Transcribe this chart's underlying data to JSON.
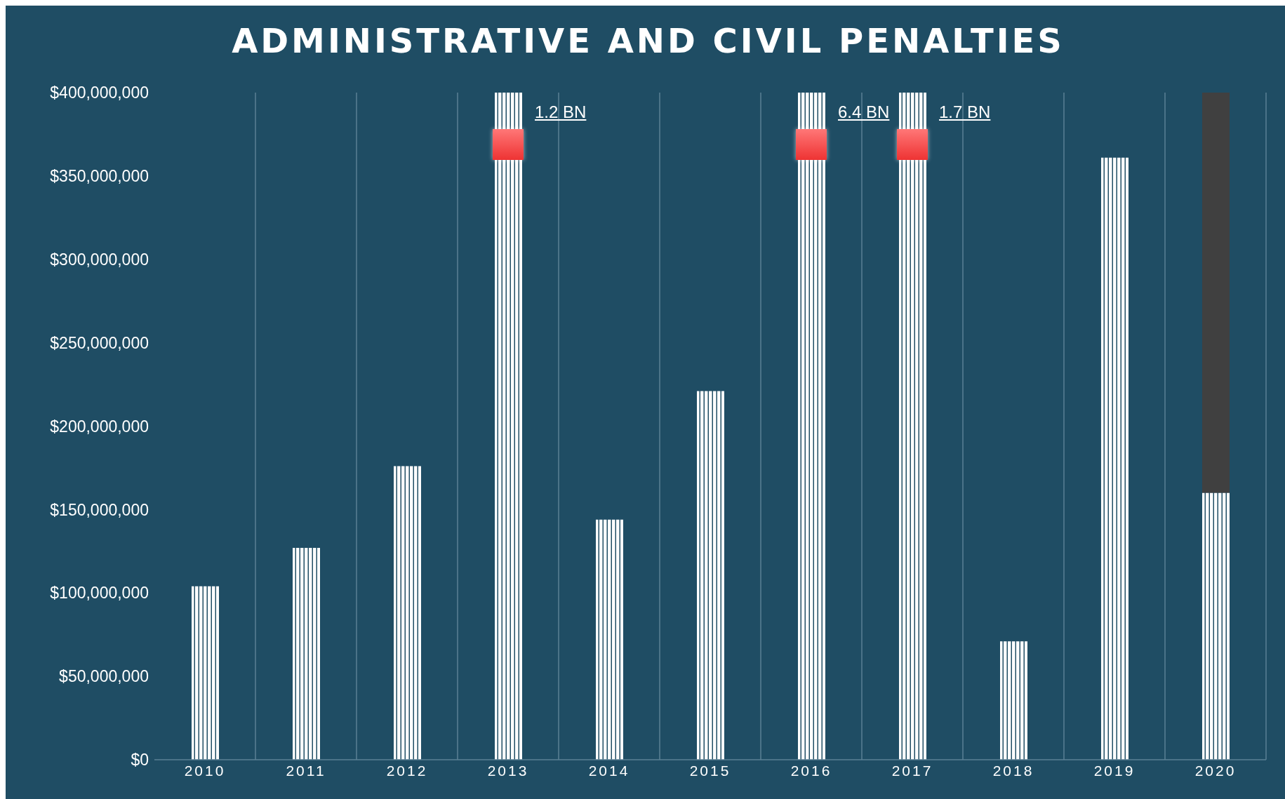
{
  "chart_data": {
    "type": "bar",
    "title": "ADMINISTRATIVE AND CIVIL PENALTIES",
    "categories": [
      "2010",
      "2011",
      "2012",
      "2013",
      "2014",
      "2015",
      "2016",
      "2017",
      "2018",
      "2019",
      "2020"
    ],
    "series": [
      {
        "color": "#ffffff",
        "values": [
          104000000,
          127000000,
          176000000,
          400000000,
          144000000,
          221000000,
          400000000,
          400000000,
          71000000,
          361000000,
          160000000
        ]
      },
      {
        "color": "#404040",
        "values": [
          null,
          null,
          null,
          null,
          null,
          null,
          null,
          null,
          null,
          null,
          240000000
        ]
      }
    ],
    "stacked": true,
    "ylim": [
      0,
      400000000
    ],
    "yticks": [
      {
        "value": 0,
        "label": "$0"
      },
      {
        "value": 50000000,
        "label": "$50,000,000"
      },
      {
        "value": 100000000,
        "label": "$100,000,000"
      },
      {
        "value": 150000000,
        "label": "$150,000,000"
      },
      {
        "value": 200000000,
        "label": "$200,000,000"
      },
      {
        "value": 250000000,
        "label": "$250,000,000"
      },
      {
        "value": 300000000,
        "label": "$300,000,000"
      },
      {
        "value": 350000000,
        "label": "$350,000,000"
      },
      {
        "value": 400000000,
        "label": "$400,000,000"
      }
    ],
    "grid": "x",
    "legend": false,
    "annotations": [
      {
        "text": "1.2 BN",
        "x": "2013",
        "y": 400000000
      },
      {
        "text": "6.4 BN",
        "x": "2016",
        "y": 400000000
      },
      {
        "text": "1.7 BN",
        "x": "2017",
        "y": 400000000
      }
    ]
  }
}
